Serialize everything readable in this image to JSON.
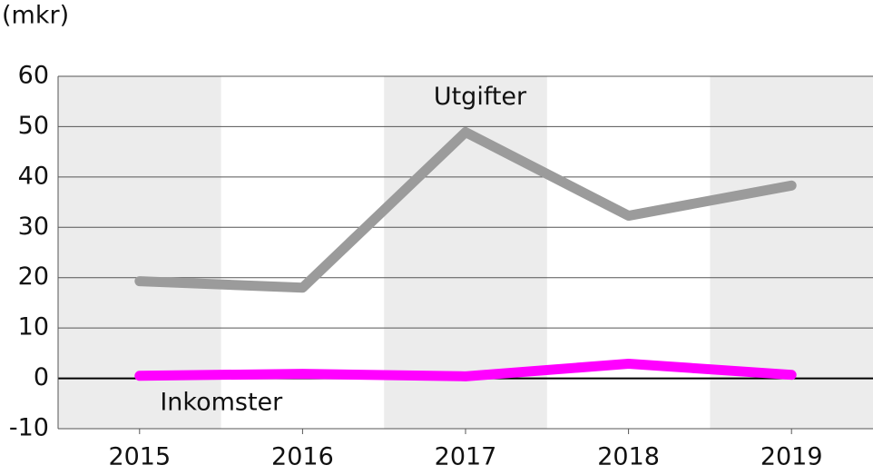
{
  "chart_data": {
    "type": "line",
    "y_unit": "(mkr)",
    "categories": [
      "2015",
      "2016",
      "2017",
      "2018",
      "2019"
    ],
    "series": [
      {
        "name": "Utgifter",
        "color": "#9b9b9b",
        "values": [
          19.3,
          18,
          48.9,
          32.3,
          38.3
        ]
      },
      {
        "name": "Inkomster",
        "color": "#ff00ff",
        "values": [
          0.5,
          0.9,
          0.4,
          2.9,
          0.7
        ]
      }
    ],
    "ylim": [
      -10,
      60
    ],
    "yticks": [
      -10,
      0,
      10,
      20,
      30,
      40,
      50,
      60
    ],
    "grid": true,
    "shade_alternate": true,
    "shade_color": "#ececec"
  }
}
